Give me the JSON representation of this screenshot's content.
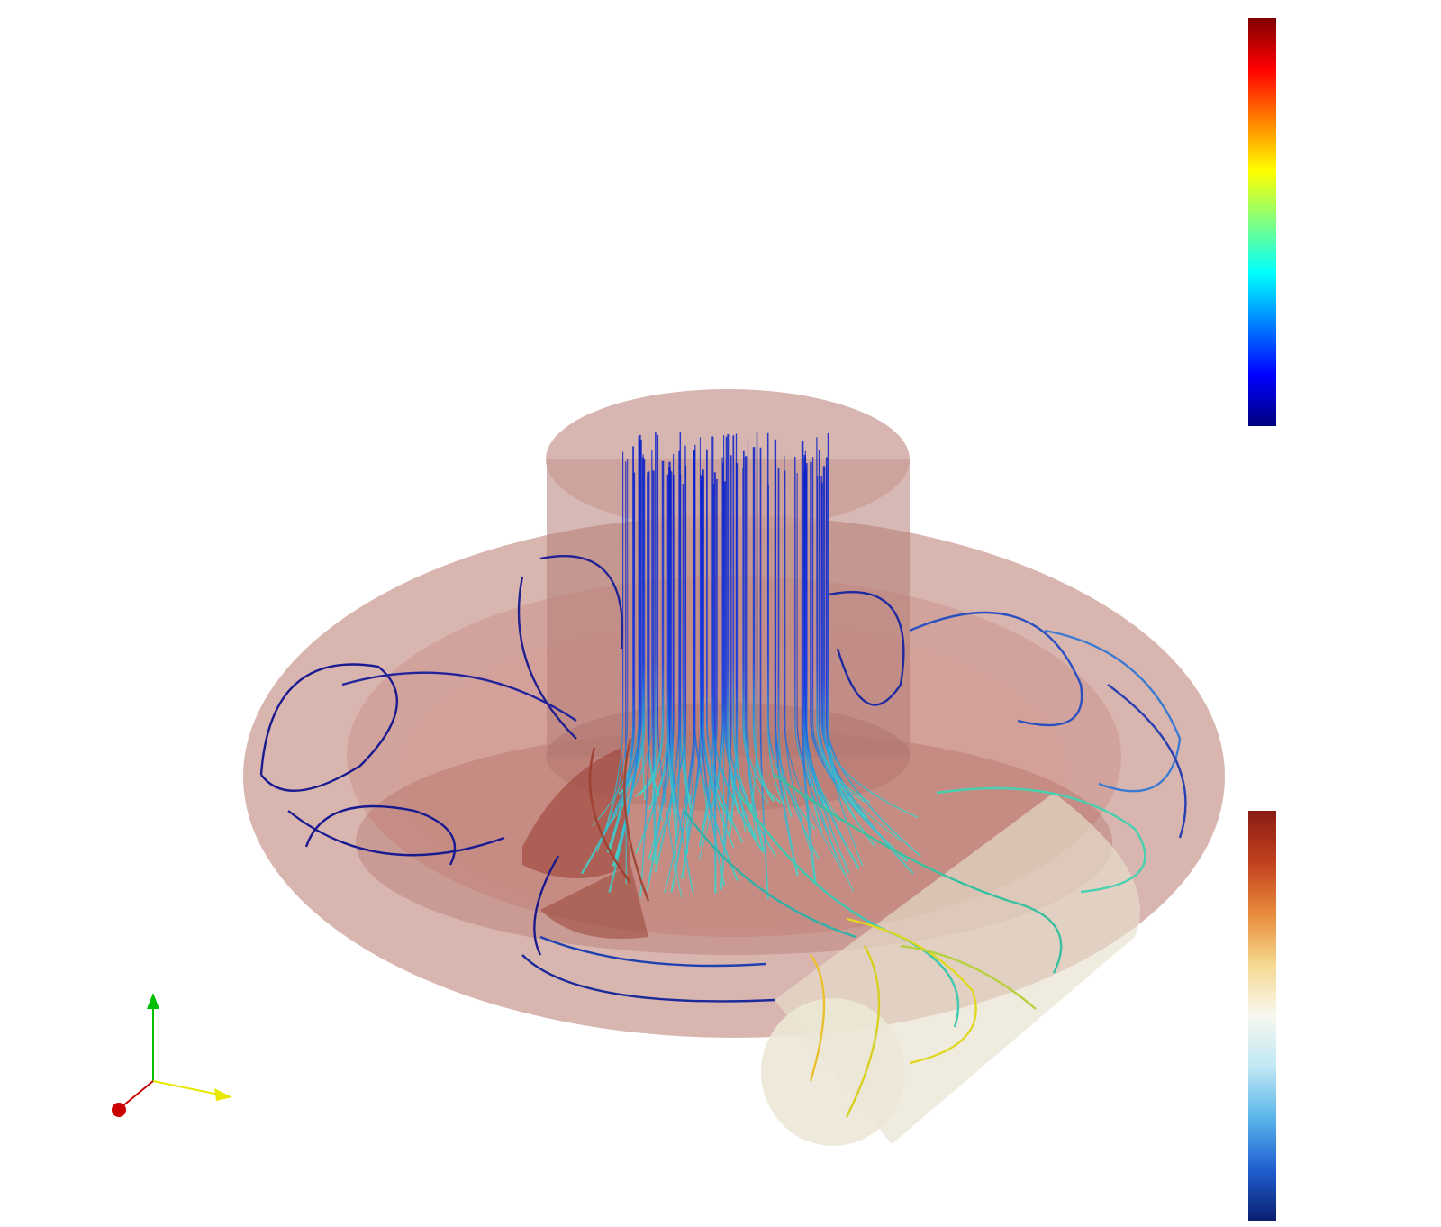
{
  "view": {
    "background": "#ffffff",
    "geometry_color": "#b97970",
    "outlet_pipe_color": "#e6e0cc"
  },
  "colorbars": {
    "velocity": {
      "colormap": "jet",
      "colors": [
        "#00007f",
        "#0000ff",
        "#0080ff",
        "#00ffff",
        "#80ff80",
        "#ffff00",
        "#ff8000",
        "#ff0000",
        "#7f0000"
      ]
    },
    "pressure": {
      "colormap": "cool-to-warm-extended",
      "colors": [
        "#0a1f70",
        "#1f5fd0",
        "#5ab4ea",
        "#bfe8f4",
        "#f8f8f0",
        "#f6d890",
        "#e88a3a",
        "#c0401e",
        "#8a1c14"
      ]
    }
  },
  "axes_triad": {
    "x_color": "#e8e800",
    "y_color": "#00c000",
    "z_color": "#cc0000"
  }
}
